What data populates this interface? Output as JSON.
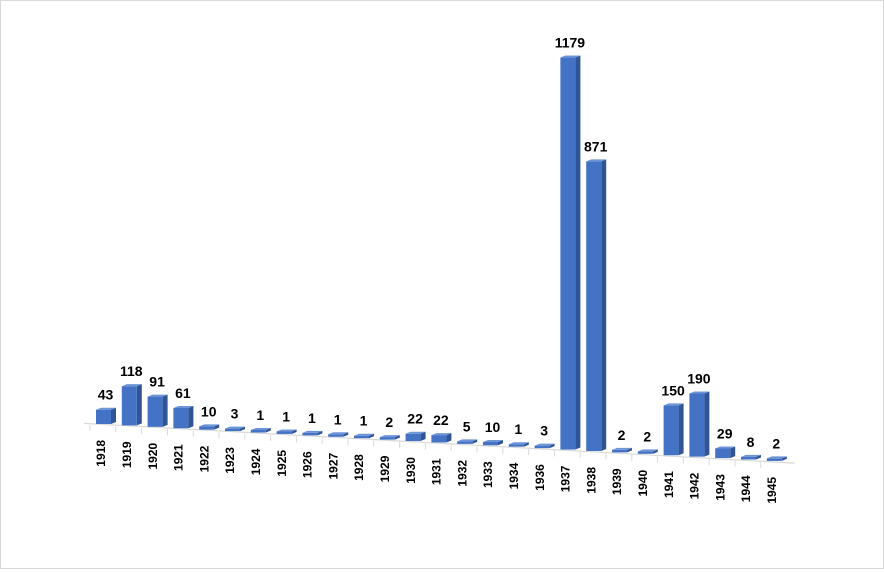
{
  "chart_data": {
    "type": "bar",
    "categories": [
      "1918",
      "1919",
      "1920",
      "1921",
      "1922",
      "1923",
      "1924",
      "1925",
      "1926",
      "1927",
      "1928",
      "1929",
      "1930",
      "1931",
      "1932",
      "1933",
      "1934",
      "1936",
      "1937",
      "1938",
      "1939",
      "1940",
      "1941",
      "1942",
      "1943",
      "1944",
      "1945"
    ],
    "values": [
      43,
      118,
      91,
      61,
      10,
      3,
      1,
      1,
      1,
      1,
      1,
      2,
      22,
      22,
      5,
      10,
      1,
      3,
      1179,
      871,
      2,
      2,
      150,
      190,
      29,
      8,
      2
    ],
    "data_labels": [
      "43",
      "118",
      "91",
      "61",
      "10",
      "3",
      "1",
      "1",
      "1",
      "1",
      "1",
      "2",
      "22",
      "22",
      "5",
      "10",
      "1",
      "3",
      "1179",
      "871",
      "2",
      "2",
      "150",
      "190",
      "29",
      "8",
      "2"
    ],
    "title": "",
    "xlabel": "",
    "ylabel": "",
    "ylim": [
      0,
      1179
    ],
    "grid": false,
    "legend": "none",
    "style": "3d-perspective",
    "colors": {
      "bar_front": "#4472C4",
      "bar_top": "#6E94D8",
      "bar_side": "#2F5597",
      "axis": "#D9D9D9",
      "text": "#000000"
    }
  }
}
